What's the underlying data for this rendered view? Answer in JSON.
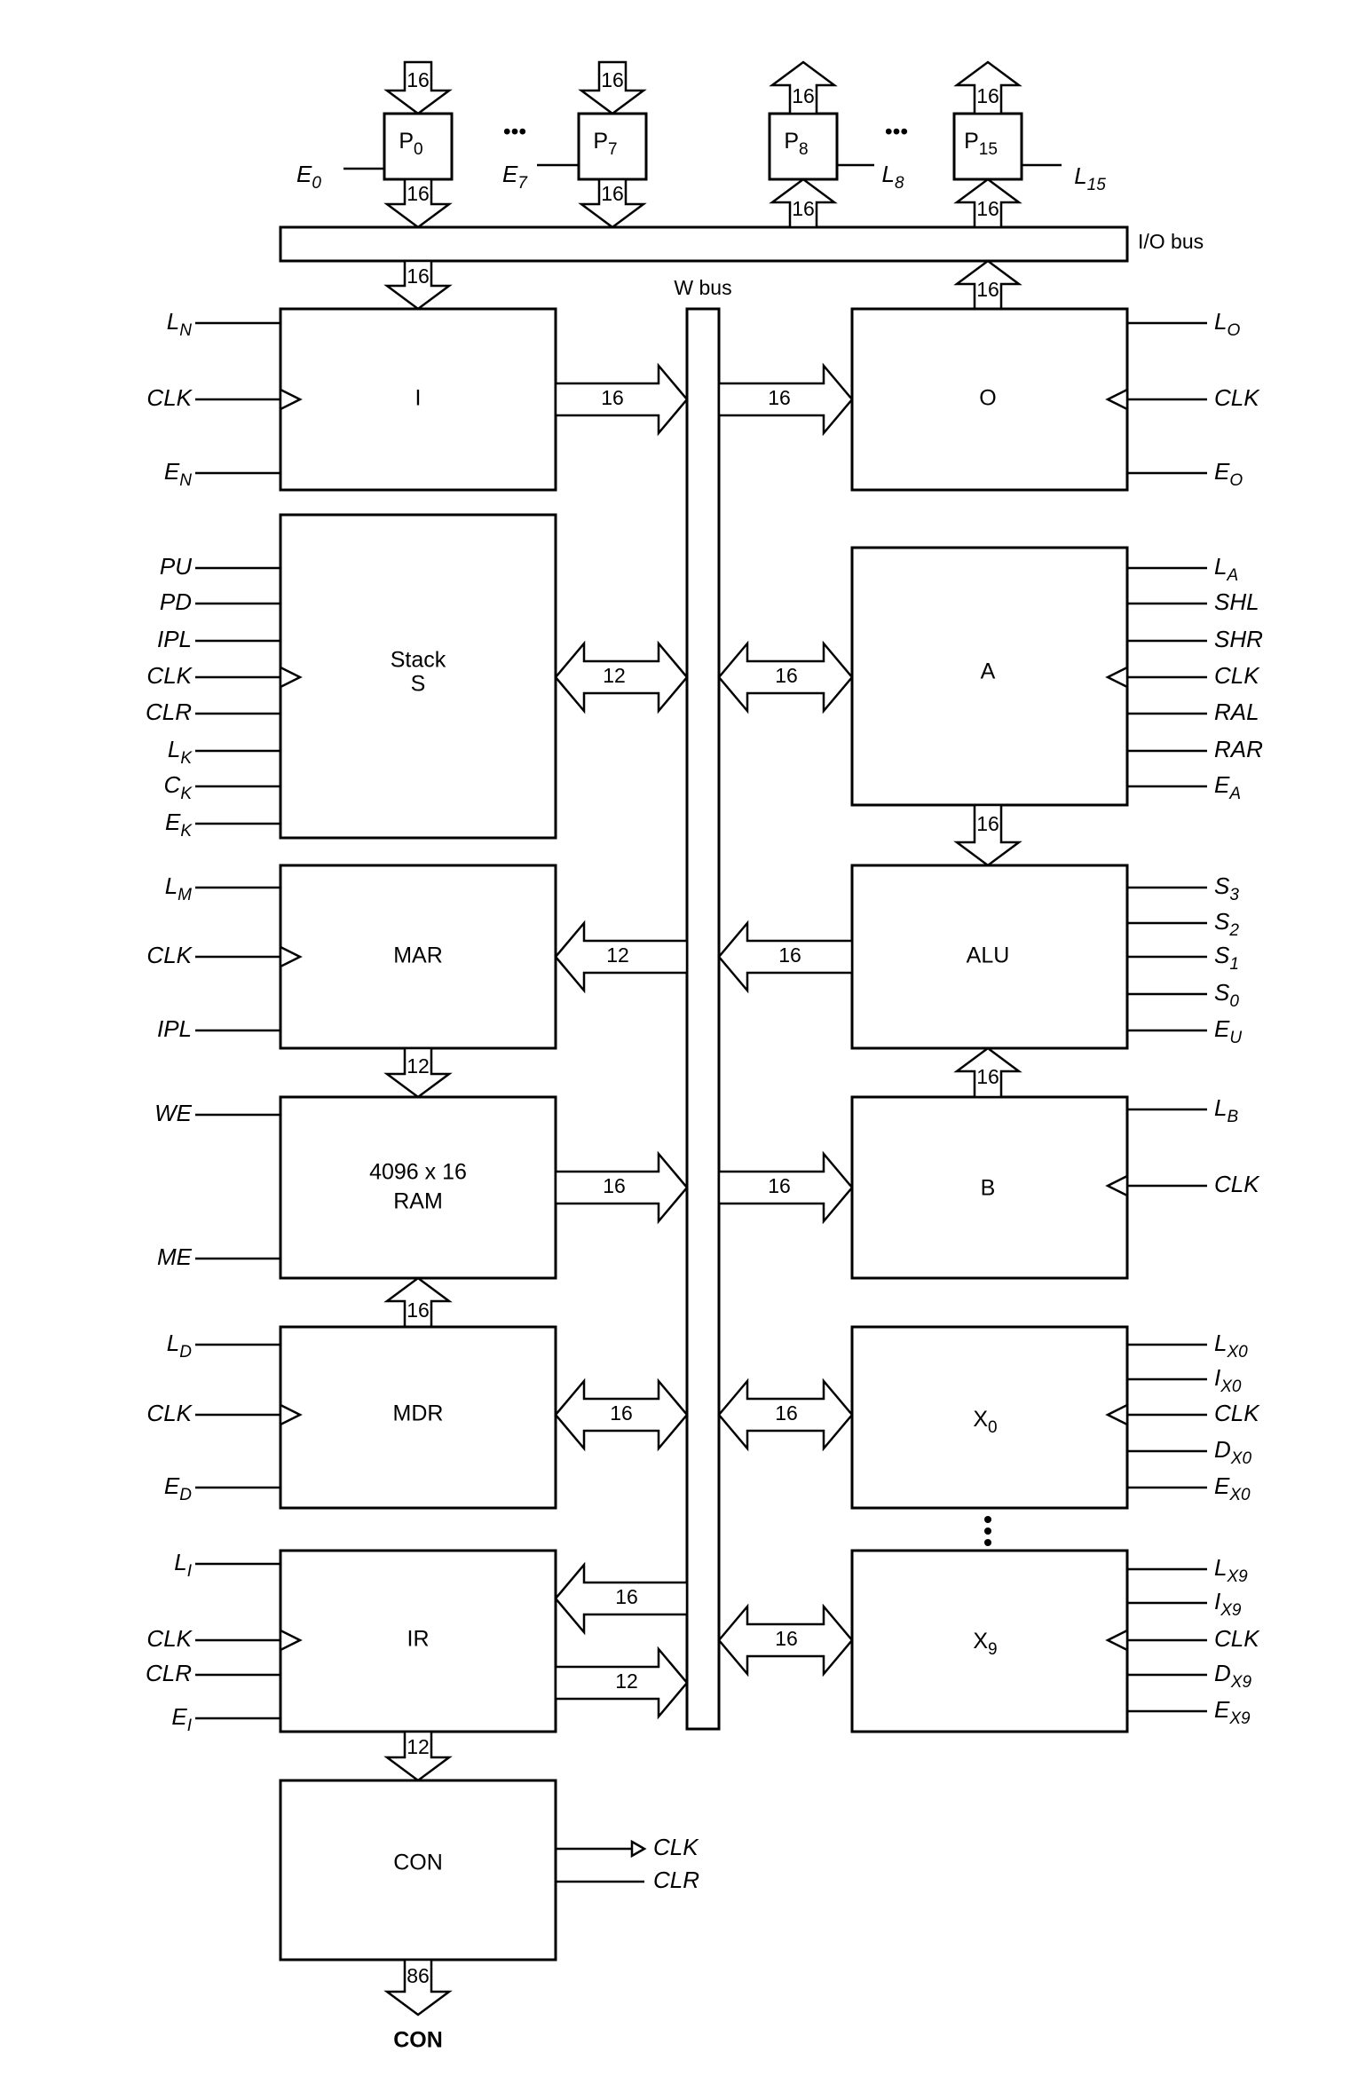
{
  "buses": {
    "io": "I/O bus",
    "w": "W bus"
  },
  "ports": {
    "p0": {
      "label": "P",
      "sub": "0",
      "enable": "E",
      "enable_sub": "0",
      "width_top": "16",
      "width_bottom": "16"
    },
    "p7": {
      "label": "P",
      "sub": "7",
      "enable": "E",
      "enable_sub": "7",
      "width_top": "16",
      "width_bottom": "16"
    },
    "p8": {
      "label": "P",
      "sub": "8",
      "load": "L",
      "load_sub": "8",
      "width_top": "16",
      "width_bottom": "16"
    },
    "p15": {
      "label": "P",
      "sub": "15",
      "load": "L",
      "load_sub": "15",
      "width_top": "16",
      "width_bottom": "16"
    },
    "ellipsis": "•••"
  },
  "io_to_i_width": "16",
  "o_from_io_width": "16",
  "blocks": {
    "i": {
      "label": "I",
      "signals": [
        "L|N",
        "CLK|",
        "E|N"
      ],
      "bus_width": "16"
    },
    "stack": {
      "label1": "Stack",
      "label2": "S",
      "signals": [
        "PU|",
        "PD|",
        "IPL|",
        "CLK|",
        "CLR|",
        "L|K",
        "C|K",
        "E|K"
      ],
      "bus_width": "12"
    },
    "mar": {
      "label": "MAR",
      "signals": [
        "L|M",
        "CLK|",
        "IPL|"
      ],
      "bus_width": "12",
      "to_ram_width": "12"
    },
    "ram": {
      "label1": "4096 x 16",
      "label2": "RAM",
      "signals": [
        "WE|",
        "ME|"
      ],
      "bus_width": "16",
      "from_mdr_width": "16"
    },
    "mdr": {
      "label": "MDR",
      "signals": [
        "L|D",
        "CLK|",
        "E|D"
      ],
      "bus_width": "16"
    },
    "ir": {
      "label": "IR",
      "signals": [
        "L|I",
        "CLK|",
        "CLR|",
        "E|I"
      ],
      "bus_width_in": "16",
      "bus_width_out": "12",
      "to_con_width": "12"
    },
    "con": {
      "label": "CON",
      "outputs": [
        "CLK",
        "CLR"
      ],
      "bottom_width": "86",
      "bottom_label": "CON"
    },
    "o": {
      "label": "O",
      "signals": [
        "L|O",
        "CLK|",
        "E|O"
      ],
      "bus_width": "16"
    },
    "a": {
      "label": "A",
      "signals": [
        "L|A",
        "SHL|",
        "SHR|",
        "CLK|",
        "RAL|",
        "RAR|",
        "E|A"
      ],
      "bus_width": "16",
      "to_alu_width": "16"
    },
    "alu": {
      "label": "ALU",
      "signals": [
        "S|3",
        "S|2",
        "S|1",
        "S|0",
        "E|U"
      ],
      "bus_width": "16"
    },
    "b": {
      "label": "B",
      "signals": [
        "L|B",
        "CLK|"
      ],
      "bus_width": "16",
      "to_alu_width": "16"
    },
    "x0": {
      "label": "X",
      "sub": "0",
      "signals": [
        "L|X0",
        "I|X0",
        "CLK|",
        "D|X0",
        "E|X0"
      ],
      "bus_width": "16"
    },
    "x9": {
      "label": "X",
      "sub": "9",
      "signals": [
        "L|X9",
        "I|X9",
        "CLK|",
        "D|X9",
        "E|X9"
      ],
      "bus_width": "16"
    }
  }
}
